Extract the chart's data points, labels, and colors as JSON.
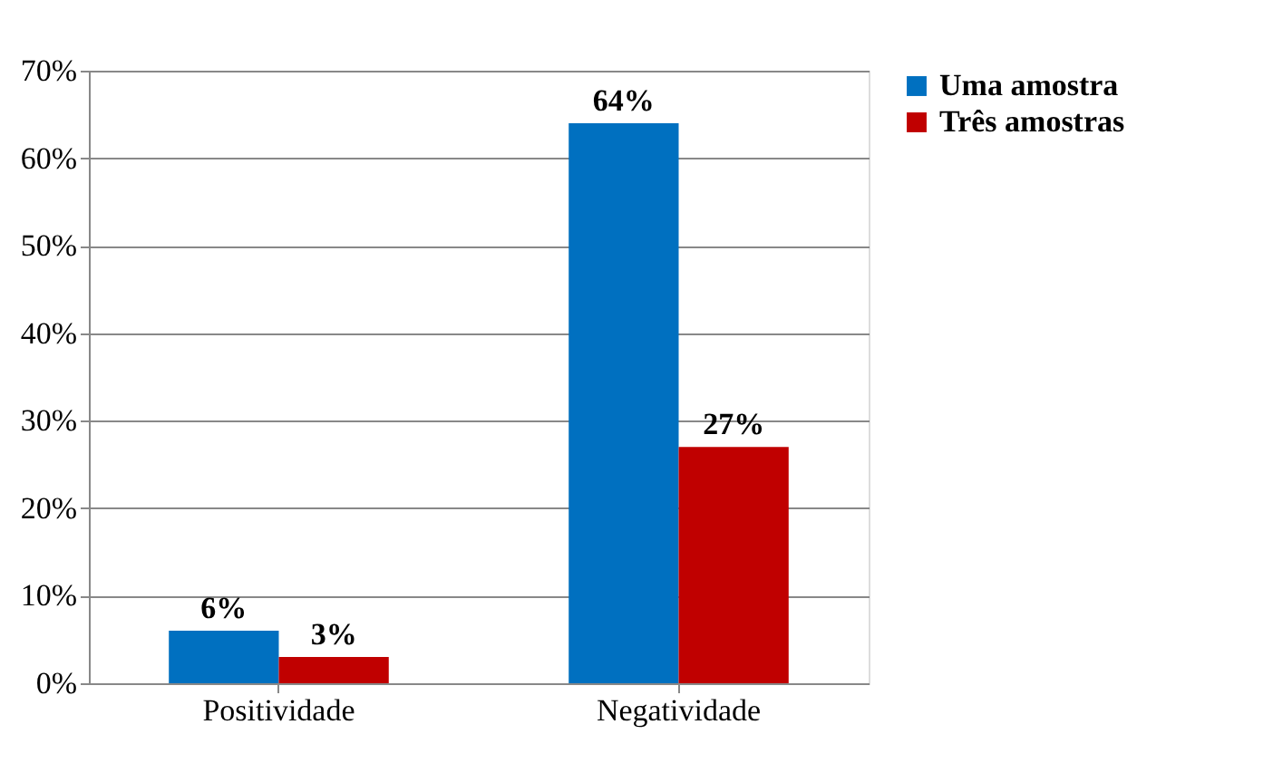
{
  "chart_data": {
    "type": "bar",
    "categories": [
      "Positividade",
      "Negatividade"
    ],
    "series": [
      {
        "name": "Uma amostra",
        "color": "#0070c0",
        "values": [
          6,
          64
        ],
        "value_labels": [
          "6%",
          "64%"
        ]
      },
      {
        "name": "Três amostras",
        "color": "#c00000",
        "values": [
          3,
          27
        ],
        "value_labels": [
          "3%",
          "27%"
        ]
      }
    ],
    "ylim": [
      0,
      70
    ],
    "yticks": [
      {
        "value": 0,
        "label": "0%"
      },
      {
        "value": 10,
        "label": "10%"
      },
      {
        "value": 20,
        "label": "20%"
      },
      {
        "value": 30,
        "label": "30%"
      },
      {
        "value": 40,
        "label": "40%"
      },
      {
        "value": 50,
        "label": "50%"
      },
      {
        "value": 60,
        "label": "60%"
      },
      {
        "value": 70,
        "label": "70%"
      }
    ],
    "grid": "y",
    "legend": "right"
  }
}
